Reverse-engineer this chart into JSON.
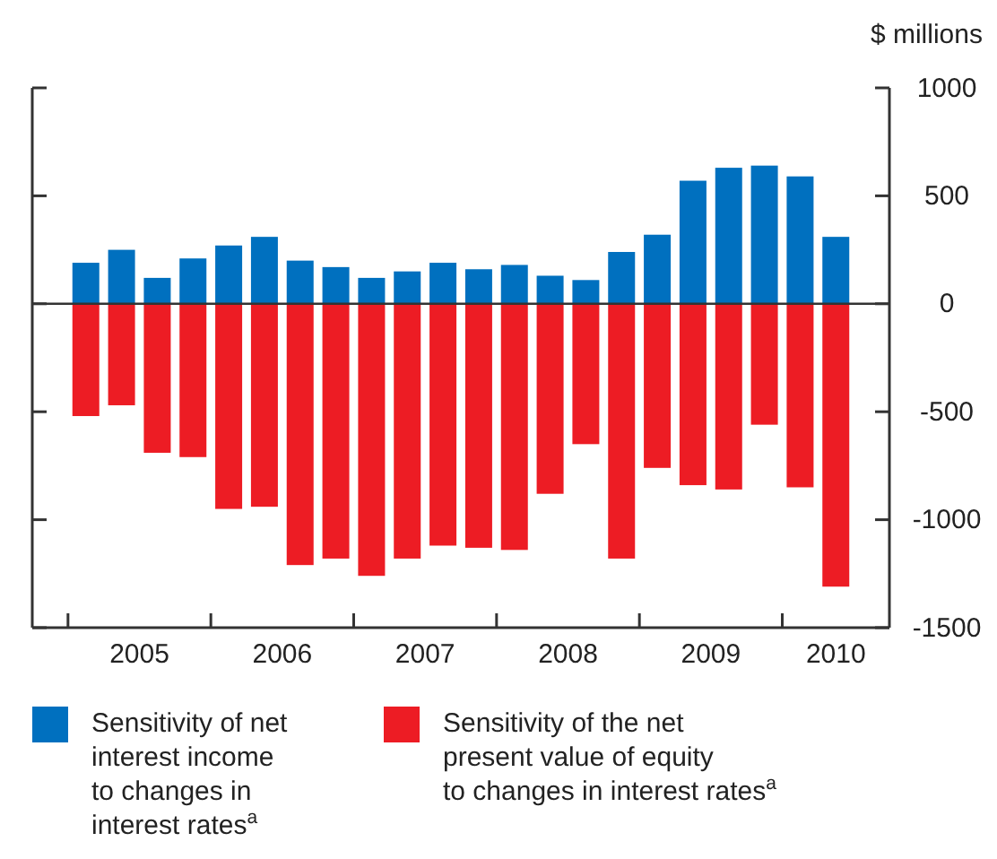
{
  "chart_data": {
    "type": "bar",
    "ylabel": "$ millions",
    "stacked": true,
    "x": [
      2005.125,
      2005.375,
      2005.625,
      2005.875,
      2006.125,
      2006.375,
      2006.625,
      2006.875,
      2007.125,
      2007.375,
      2007.625,
      2007.875,
      2008.125,
      2008.375,
      2008.625,
      2008.875,
      2009.125,
      2009.375,
      2009.625,
      2009.875,
      2010.125,
      2010.375
    ],
    "xlim": [
      2004.75,
      2010.75
    ],
    "xticks": [
      {
        "value": 2005,
        "label": null
      },
      {
        "value": 2005.5,
        "label": "2005"
      },
      {
        "value": 2006,
        "label": null
      },
      {
        "value": 2006.5,
        "label": "2006"
      },
      {
        "value": 2007,
        "label": null
      },
      {
        "value": 2007.5,
        "label": "2007"
      },
      {
        "value": 2008,
        "label": null
      },
      {
        "value": 2008.5,
        "label": "2008"
      },
      {
        "value": 2009,
        "label": null
      },
      {
        "value": 2009.5,
        "label": "2009"
      },
      {
        "value": 2010,
        "label": null
      },
      {
        "value": 2010.375,
        "label": "2010"
      }
    ],
    "ylim": [
      -1500,
      1000
    ],
    "yticks": [
      -1500,
      -1000,
      -500,
      0,
      500,
      1000
    ],
    "series": [
      {
        "name": "Sensitivity of net interest income to changes in interest rates$^{a}$",
        "color": "#0070bf",
        "values": [
          190,
          250,
          120,
          210,
          270,
          310,
          200,
          170,
          120,
          150,
          190,
          160,
          180,
          130,
          110,
          240,
          320,
          570,
          630,
          640,
          590,
          310
        ]
      },
      {
        "name": "Sensitivity of the net present value of equity to changes in interest rates$^{a}$",
        "color": "#ed1c24",
        "values": [
          -520,
          -470,
          -690,
          -710,
          -950,
          -940,
          -1210,
          -1180,
          -1260,
          -1180,
          -1120,
          -1130,
          -1140,
          -880,
          -650,
          -1180,
          -760,
          -840,
          -860,
          -560,
          -850,
          -1310
        ]
      }
    ],
    "legend": "bottom"
  }
}
